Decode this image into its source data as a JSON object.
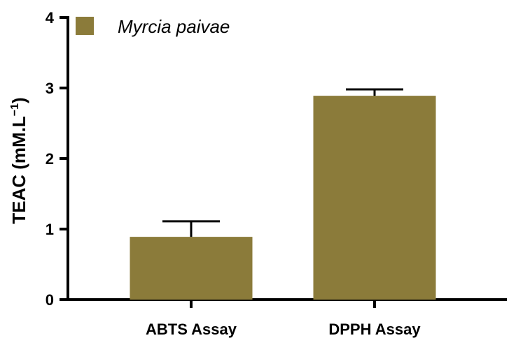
{
  "chart_data": {
    "type": "bar",
    "categories": [
      "ABTS Assay",
      "DPPH Assay"
    ],
    "series": [
      {
        "name": "Myrcia paivae",
        "values": [
          0.89,
          2.89
        ],
        "error_plus": [
          0.22,
          0.09
        ],
        "color": "#8b7b3a"
      }
    ],
    "ylabel": {
      "text": "TEAC (mM.L",
      "sup": "−1",
      "close": ")"
    },
    "ylim": [
      0,
      4
    ],
    "yticks": [
      "0",
      "1",
      "2",
      "3",
      "4"
    ],
    "grid": false,
    "legend_position": "top-left"
  }
}
